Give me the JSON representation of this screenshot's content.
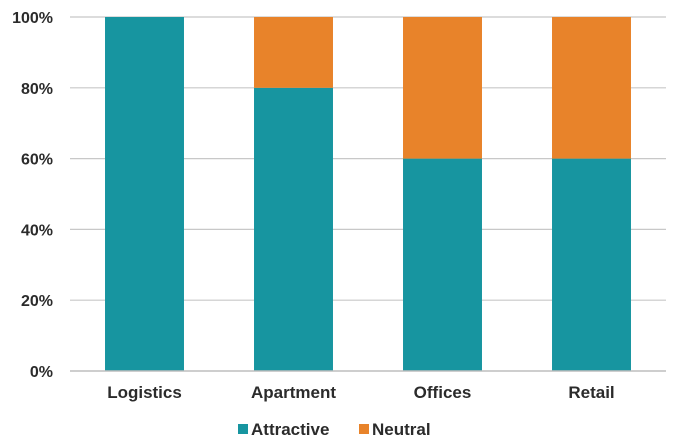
{
  "chart_data": {
    "type": "bar",
    "stacked": true,
    "categories": [
      "Logistics",
      "Apartment",
      "Offices",
      "Retail"
    ],
    "series": [
      {
        "name": "Attractive",
        "values": [
          100,
          80,
          60,
          60
        ],
        "color": "#1795a0"
      },
      {
        "name": "Neutral",
        "values": [
          0,
          20,
          40,
          40
        ],
        "color": "#e8832a"
      }
    ],
    "ylim": [
      0,
      100
    ],
    "yticks": [
      0,
      20,
      40,
      60,
      80,
      100
    ],
    "ytick_labels": [
      "0%",
      "20%",
      "40%",
      "60%",
      "80%",
      "100%"
    ],
    "grid": true,
    "legend_position": "bottom",
    "title": "",
    "xlabel": "",
    "ylabel": ""
  }
}
